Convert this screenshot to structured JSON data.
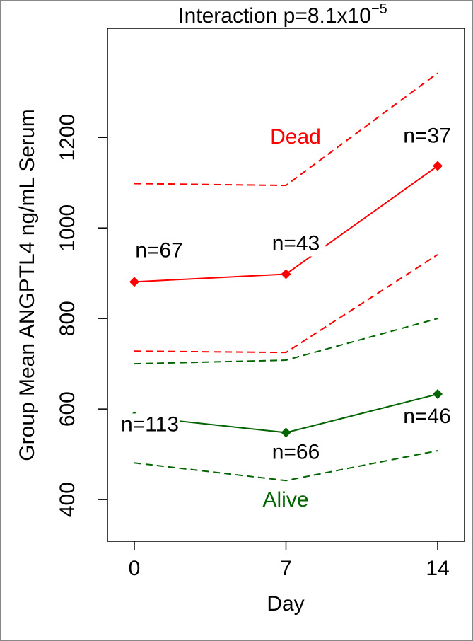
{
  "chart_data": {
    "type": "line",
    "title": "Interaction p=8.1x10",
    "title_superscript": "−5",
    "x_label": "Day",
    "y_label": "Group Mean ANGPTL4 ng/mL Serum",
    "x": [
      0,
      7,
      14
    ],
    "xlim": [
      -1.24,
      15.24
    ],
    "xticks": [
      0,
      7,
      14
    ],
    "ylim": [
      308,
      1441
    ],
    "yticks": [
      400,
      600,
      800,
      1000,
      1200
    ],
    "groups": [
      {
        "name": "Dead",
        "color": "#ff0000",
        "mean": [
          881,
          898,
          1137
        ],
        "upper": [
          1098,
          1094,
          1342
        ],
        "lower": [
          728,
          725,
          941
        ],
        "n_labels": [
          "n=67",
          "n=43",
          "n=37"
        ]
      },
      {
        "name": "Alive",
        "color": "#006400",
        "mean": [
          584,
          548,
          633
        ],
        "upper": [
          700,
          708,
          800
        ],
        "lower": [
          481,
          442,
          508
        ],
        "n_labels": [
          "n=113",
          "n=66",
          "n=46"
        ]
      }
    ]
  }
}
